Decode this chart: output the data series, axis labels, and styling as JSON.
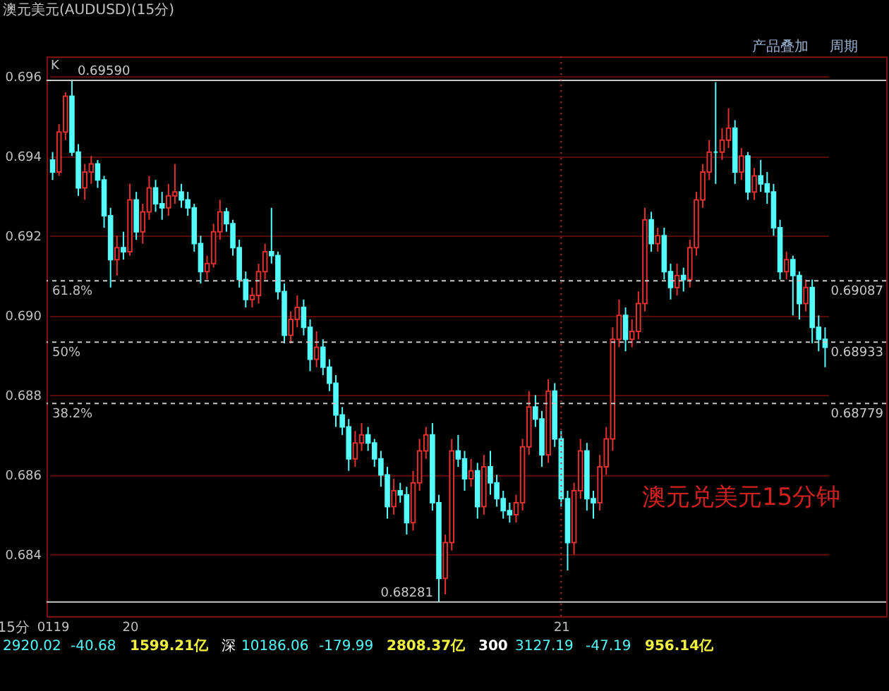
{
  "chart_data": {
    "type": "candlestick",
    "title": "澳元美元(AUDUSD)(15分)",
    "xlabel": "15分",
    "categories": [
      "0119",
      null,
      null,
      null,
      null,
      null,
      null,
      null,
      null,
      null,
      null,
      null,
      "20",
      null,
      null,
      null,
      null,
      null,
      null,
      null,
      null,
      null,
      null,
      null,
      null,
      null,
      null,
      null,
      null,
      null,
      null,
      null,
      null,
      null,
      null,
      null,
      null,
      null,
      null,
      null,
      null,
      null,
      null,
      null,
      null,
      null,
      null,
      null,
      null,
      null,
      null,
      null,
      null,
      null,
      null,
      null,
      null,
      null,
      null,
      null,
      null,
      null,
      null,
      null,
      null,
      null,
      null,
      null,
      null,
      null,
      null,
      null,
      null,
      null,
      null,
      null,
      null,
      null,
      null,
      "21",
      null,
      null,
      null,
      null,
      null,
      null,
      null,
      null,
      null,
      null,
      null,
      null,
      null,
      null,
      null,
      null,
      null,
      null,
      null,
      null,
      null,
      null,
      null,
      null,
      null,
      null,
      null,
      null,
      null,
      null,
      null,
      null,
      null,
      null,
      null,
      null,
      null,
      null,
      null,
      null,
      null
    ],
    "ohlc": [
      [
        0.6939,
        0.6941,
        0.6934,
        0.6936
      ],
      [
        0.6936,
        0.6948,
        0.6935,
        0.6946
      ],
      [
        0.6946,
        0.6956,
        0.6944,
        0.6955
      ],
      [
        0.6955,
        0.6959,
        0.694,
        0.6941
      ],
      [
        0.6941,
        0.6943,
        0.693,
        0.6932
      ],
      [
        0.6932,
        0.6938,
        0.6929,
        0.6936
      ],
      [
        0.6936,
        0.694,
        0.6933,
        0.6938
      ],
      [
        0.6938,
        0.6939,
        0.6932,
        0.6934
      ],
      [
        0.6934,
        0.6935,
        0.6922,
        0.6925
      ],
      [
        0.6925,
        0.6927,
        0.6907,
        0.6914
      ],
      [
        0.6914,
        0.692,
        0.691,
        0.6917
      ],
      [
        0.6917,
        0.6921,
        0.6914,
        0.6916
      ],
      [
        0.6916,
        0.6933,
        0.6915,
        0.6929
      ],
      [
        0.6929,
        0.6931,
        0.6919,
        0.6921
      ],
      [
        0.6921,
        0.6928,
        0.6918,
        0.6926
      ],
      [
        0.6926,
        0.6935,
        0.6924,
        0.6932
      ],
      [
        0.6932,
        0.6934,
        0.6926,
        0.6928
      ],
      [
        0.6928,
        0.6931,
        0.6924,
        0.6927
      ],
      [
        0.6927,
        0.6933,
        0.6925,
        0.693
      ],
      [
        0.693,
        0.6938,
        0.6928,
        0.6931
      ],
      [
        0.6931,
        0.6933,
        0.6927,
        0.6929
      ],
      [
        0.6929,
        0.6931,
        0.6925,
        0.6927
      ],
      [
        0.6927,
        0.6928,
        0.6916,
        0.6918
      ],
      [
        0.6918,
        0.692,
        0.6908,
        0.6911
      ],
      [
        0.6911,
        0.6915,
        0.6909,
        0.6913
      ],
      [
        0.6913,
        0.6923,
        0.6912,
        0.6921
      ],
      [
        0.6921,
        0.6929,
        0.6919,
        0.6926
      ],
      [
        0.6926,
        0.6927,
        0.6921,
        0.6923
      ],
      [
        0.6923,
        0.6924,
        0.6915,
        0.6917
      ],
      [
        0.6917,
        0.6919,
        0.6907,
        0.6909
      ],
      [
        0.6909,
        0.6911,
        0.6902,
        0.6904
      ],
      [
        0.6904,
        0.6907,
        0.6902,
        0.6905
      ],
      [
        0.6905,
        0.6913,
        0.6903,
        0.6911
      ],
      [
        0.6911,
        0.6918,
        0.6909,
        0.6916
      ],
      [
        0.6916,
        0.6927,
        0.6913,
        0.6915
      ],
      [
        0.6915,
        0.6916,
        0.6904,
        0.6906
      ],
      [
        0.6906,
        0.6908,
        0.6893,
        0.6895
      ],
      [
        0.6895,
        0.6901,
        0.6893,
        0.6899
      ],
      [
        0.6899,
        0.6905,
        0.6897,
        0.6902
      ],
      [
        0.6902,
        0.6904,
        0.6895,
        0.6897
      ],
      [
        0.6897,
        0.6899,
        0.6886,
        0.6889
      ],
      [
        0.6889,
        0.6896,
        0.6887,
        0.6892
      ],
      [
        0.6892,
        0.6894,
        0.6885,
        0.6887
      ],
      [
        0.6887,
        0.6889,
        0.6881,
        0.6883
      ],
      [
        0.6883,
        0.6885,
        0.6872,
        0.6875
      ],
      [
        0.6875,
        0.6877,
        0.687,
        0.6872
      ],
      [
        0.6872,
        0.6874,
        0.6861,
        0.6864
      ],
      [
        0.6864,
        0.6871,
        0.6862,
        0.6868
      ],
      [
        0.6868,
        0.6873,
        0.6866,
        0.687
      ],
      [
        0.687,
        0.6872,
        0.6866,
        0.6868
      ],
      [
        0.6868,
        0.6869,
        0.6862,
        0.6864
      ],
      [
        0.6864,
        0.6866,
        0.6857,
        0.686
      ],
      [
        0.686,
        0.6862,
        0.6849,
        0.6852
      ],
      [
        0.6852,
        0.6859,
        0.685,
        0.6856
      ],
      [
        0.6856,
        0.6858,
        0.6853,
        0.6855
      ],
      [
        0.6855,
        0.6857,
        0.6845,
        0.6848
      ],
      [
        0.6848,
        0.6861,
        0.6846,
        0.6858
      ],
      [
        0.6858,
        0.6869,
        0.6856,
        0.6866
      ],
      [
        0.6866,
        0.6872,
        0.6864,
        0.687
      ],
      [
        0.687,
        0.6873,
        0.6851,
        0.6853
      ],
      [
        0.6853,
        0.6855,
        0.68281,
        0.6834
      ],
      [
        0.6834,
        0.6845,
        0.683,
        0.6843
      ],
      [
        0.6843,
        0.6869,
        0.6841,
        0.6866
      ],
      [
        0.6866,
        0.687,
        0.6862,
        0.6864
      ],
      [
        0.6864,
        0.6866,
        0.6856,
        0.6859
      ],
      [
        0.6859,
        0.6864,
        0.6857,
        0.6861
      ],
      [
        0.6861,
        0.6863,
        0.6849,
        0.6852
      ],
      [
        0.6852,
        0.6865,
        0.685,
        0.6862
      ],
      [
        0.6862,
        0.6866,
        0.6855,
        0.6858
      ],
      [
        0.6858,
        0.686,
        0.6852,
        0.6854
      ],
      [
        0.6854,
        0.6856,
        0.6849,
        0.6851
      ],
      [
        0.6851,
        0.6853,
        0.6848,
        0.685
      ],
      [
        0.685,
        0.6855,
        0.6848,
        0.6853
      ],
      [
        0.6853,
        0.6869,
        0.6851,
        0.6867
      ],
      [
        0.6867,
        0.6881,
        0.6865,
        0.6877
      ],
      [
        0.6877,
        0.688,
        0.6872,
        0.6874
      ],
      [
        0.6874,
        0.6876,
        0.6862,
        0.6865
      ],
      [
        0.6865,
        0.6884,
        0.6863,
        0.6881
      ],
      [
        0.6881,
        0.6883,
        0.6867,
        0.6869
      ],
      [
        0.6869,
        0.6871,
        0.6852,
        0.6854
      ],
      [
        0.6854,
        0.6856,
        0.6836,
        0.6843
      ],
      [
        0.6843,
        0.6858,
        0.684,
        0.6856
      ],
      [
        0.6856,
        0.6869,
        0.6854,
        0.6866
      ],
      [
        0.6866,
        0.6868,
        0.6851,
        0.6854
      ],
      [
        0.6854,
        0.6856,
        0.6849,
        0.6853
      ],
      [
        0.6853,
        0.6865,
        0.6851,
        0.6862
      ],
      [
        0.6862,
        0.6872,
        0.686,
        0.6869
      ],
      [
        0.6869,
        0.6897,
        0.6866,
        0.6894
      ],
      [
        0.6894,
        0.6904,
        0.6892,
        0.69
      ],
      [
        0.69,
        0.6902,
        0.6891,
        0.6894
      ],
      [
        0.6894,
        0.6899,
        0.6892,
        0.6896
      ],
      [
        0.6896,
        0.6906,
        0.6894,
        0.6903
      ],
      [
        0.6903,
        0.6927,
        0.6901,
        0.6924
      ],
      [
        0.6924,
        0.6926,
        0.6916,
        0.6918
      ],
      [
        0.6918,
        0.6922,
        0.6916,
        0.692
      ],
      [
        0.692,
        0.6922,
        0.6909,
        0.6911
      ],
      [
        0.6911,
        0.6913,
        0.6904,
        0.6907
      ],
      [
        0.6907,
        0.6913,
        0.6905,
        0.691
      ],
      [
        0.691,
        0.6912,
        0.6906,
        0.6909
      ],
      [
        0.6909,
        0.6919,
        0.6907,
        0.6917
      ],
      [
        0.6917,
        0.6931,
        0.6915,
        0.6929
      ],
      [
        0.6929,
        0.6938,
        0.6927,
        0.6936
      ],
      [
        0.6936,
        0.6944,
        0.6934,
        0.6941
      ],
      [
        0.6941,
        0.69585,
        0.6933,
        0.6941
      ],
      [
        0.6941,
        0.6947,
        0.6939,
        0.6944
      ],
      [
        0.6944,
        0.6952,
        0.6942,
        0.6947
      ],
      [
        0.6947,
        0.6949,
        0.6933,
        0.6936
      ],
      [
        0.6936,
        0.6942,
        0.6934,
        0.694
      ],
      [
        0.694,
        0.6941,
        0.6929,
        0.6931
      ],
      [
        0.6931,
        0.6937,
        0.6929,
        0.6935
      ],
      [
        0.6935,
        0.6939,
        0.6931,
        0.6933
      ],
      [
        0.6933,
        0.6936,
        0.6928,
        0.6931
      ],
      [
        0.6931,
        0.6933,
        0.692,
        0.6922
      ],
      [
        0.6922,
        0.6924,
        0.6909,
        0.6911
      ],
      [
        0.6911,
        0.6916,
        0.6909,
        0.6914
      ],
      [
        0.6914,
        0.6915,
        0.69,
        0.691
      ],
      [
        0.691,
        0.6911,
        0.6899,
        0.6903
      ],
      [
        0.6903,
        0.6909,
        0.6901,
        0.6907
      ],
      [
        0.6907,
        0.6909,
        0.6893,
        0.6897
      ],
      [
        0.6897,
        0.69,
        0.6891,
        0.6894
      ],
      [
        0.6894,
        0.6897,
        0.6887,
        0.6892
      ]
    ],
    "colors": [
      "#54fcfc",
      "#e03030",
      "#e03030",
      "#54fcfc",
      "#54fcfc",
      "#e03030",
      "#e03030",
      "#54fcfc",
      "#54fcfc",
      "#54fcfc",
      "#e03030",
      "#54fcfc",
      "#e03030",
      "#54fcfc",
      "#e03030",
      "#e03030",
      "#54fcfc",
      "#54fcfc",
      "#e03030",
      "#e03030",
      "#54fcfc",
      "#54fcfc",
      "#54fcfc",
      "#54fcfc",
      "#e03030",
      "#e03030",
      "#e03030",
      "#54fcfc",
      "#54fcfc",
      "#54fcfc",
      "#54fcfc",
      "#e03030",
      "#e03030",
      "#e03030",
      "#54fcfc",
      "#54fcfc",
      "#54fcfc",
      "#e03030",
      "#e03030",
      "#54fcfc",
      "#54fcfc",
      "#e03030",
      "#54fcfc",
      "#54fcfc",
      "#54fcfc",
      "#54fcfc",
      "#54fcfc",
      "#e03030",
      "#e03030",
      "#54fcfc",
      "#54fcfc",
      "#54fcfc",
      "#54fcfc",
      "#e03030",
      "#54fcfc",
      "#54fcfc",
      "#e03030",
      "#e03030",
      "#e03030",
      "#54fcfc",
      "#54fcfc",
      "#e03030",
      "#e03030",
      "#54fcfc",
      "#54fcfc",
      "#e03030",
      "#54fcfc",
      "#e03030",
      "#54fcfc",
      "#54fcfc",
      "#54fcfc",
      "#54fcfc",
      "#e03030",
      "#e03030",
      "#e03030",
      "#54fcfc",
      "#54fcfc",
      "#e03030",
      "#54fcfc",
      "#54fcfc",
      "#54fcfc",
      "#e03030",
      "#e03030",
      "#54fcfc",
      "#54fcfc",
      "#e03030",
      "#e03030",
      "#e03030",
      "#e03030",
      "#54fcfc",
      "#e03030",
      "#e03030",
      "#e03030",
      "#54fcfc",
      "#e03030",
      "#54fcfc",
      "#54fcfc",
      "#e03030",
      "#54fcfc",
      "#e03030",
      "#e03030",
      "#e03030",
      "#e03030",
      "#54fcfc",
      "#e03030",
      "#e03030",
      "#54fcfc",
      "#e03030",
      "#54fcfc",
      "#e03030",
      "#54fcfc",
      "#54fcfc",
      "#54fcfc",
      "#54fcfc",
      "#e03030",
      "#54fcfc",
      "#54fcfc",
      "#e03030",
      "#54fcfc",
      "#54fcfc",
      "#54fcfc"
    ],
    "ylim": [
      0.68245,
      0.6965
    ],
    "yticks": [
      0.684,
      0.686,
      0.688,
      {
        "value": 0.69,
        "label": "0.690"
      },
      0.692,
      0.694,
      0.696
    ],
    "grid": "y",
    "ref_lines": [
      {
        "axis": "y",
        "value": 0.6959,
        "label": "0.69590",
        "color": "#c8c8c8",
        "line_style": "solid"
      },
      {
        "axis": "y",
        "value": 0.68281,
        "label": "0.68281",
        "color": "#c8c8c8",
        "line_style": "solid"
      },
      {
        "axis": "y",
        "value": 0.69087,
        "label": "0.69087",
        "color": "#c8c8c8",
        "line_style": "dashed"
      },
      {
        "axis": "y",
        "value": 0.68933,
        "label": "0.68933",
        "color": "#c8c8c8",
        "line_style": "dashed"
      },
      {
        "axis": "y",
        "value": 0.68779,
        "label": "0.68779",
        "color": "#c8c8c8",
        "line_style": "dashed"
      },
      {
        "axis": "x",
        "value": "21",
        "color": "#b03030",
        "line_style": "dotted"
      }
    ],
    "annotations": [
      "K",
      "产品叠加",
      "周期",
      "澳元兑美元15分钟",
      {
        "text": "61.8%",
        "y": 0.69087
      },
      {
        "text": "50%",
        "y": 0.68933
      },
      {
        "text": "38.2%",
        "y": 0.68779
      },
      "2920.02",
      "-40.68",
      "1599.21亿",
      "深",
      "10186.06",
      "-179.99",
      "2808.37亿",
      "300",
      "3127.19",
      "-47.19",
      "956.14亿"
    ]
  }
}
